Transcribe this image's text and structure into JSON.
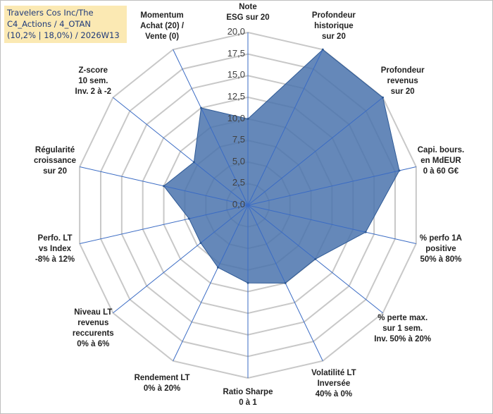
{
  "title": "Travelers Cos Inc/The\nC4_Actions / 4_OTAN\n(10,2% | 18,0%) / 2026W13",
  "colors": {
    "fill": "#4a73ad",
    "stroke": "#2f5a96",
    "grid": "#c8c8c8",
    "spoke": "#3a6bc4",
    "title_bg": "#fbe9b3"
  },
  "chart_data": {
    "type": "radar",
    "title": "Travelers Cos Inc/The C4_Actions / 4_OTAN (10,2% | 18,0%) / 2026W13",
    "rmin": 0,
    "rmax": 20,
    "tick_values": [
      0,
      2.5,
      5,
      7.5,
      10,
      12.5,
      15,
      17.5,
      20
    ],
    "tick_labels": [
      "0,0",
      "2,5",
      "5,0",
      "7,5",
      "10,0",
      "12,5",
      "15,0",
      "17,5",
      "20,0"
    ],
    "axes": [
      {
        "label": "Note\nESG sur 20",
        "value": 10.0
      },
      {
        "label": "Profondeur\nhistorique\nsur 20",
        "value": 20.0
      },
      {
        "label": "Profondeur\nrevenus\nsur 20",
        "value": 20.0
      },
      {
        "label": "Capi. bours.\nen MdEUR\n0 à 60 G€",
        "value": 18.0
      },
      {
        "label": "% perfo 1A\npositive\n50% à 80%",
        "value": 14.0
      },
      {
        "label": "% perte max.\nsur 1 sem.\nInv. 50% à 20%",
        "value": 10.0
      },
      {
        "label": "Volatilité LT\nInversée\n40% à 0%",
        "value": 10.0
      },
      {
        "label": "Ratio Sharpe\n0 à 1",
        "value": 9.0
      },
      {
        "label": "Rendement LT\n0% à 20%",
        "value": 8.0
      },
      {
        "label": "Niveau LT\nrevenus\nreccurents\n0% à 6%",
        "value": 7.0
      },
      {
        "label": "Perfo. LT\nvs Index\n-8% à 12%",
        "value": 7.0
      },
      {
        "label": "Régularité\ncroissance\nsur 20",
        "value": 10.0
      },
      {
        "label": "Z-score\n10 sem.\nInv. 2 à -2",
        "value": 8.0
      },
      {
        "label": "Momentum\nAchat (20) /\nVente (0)",
        "value": 12.5
      }
    ]
  }
}
